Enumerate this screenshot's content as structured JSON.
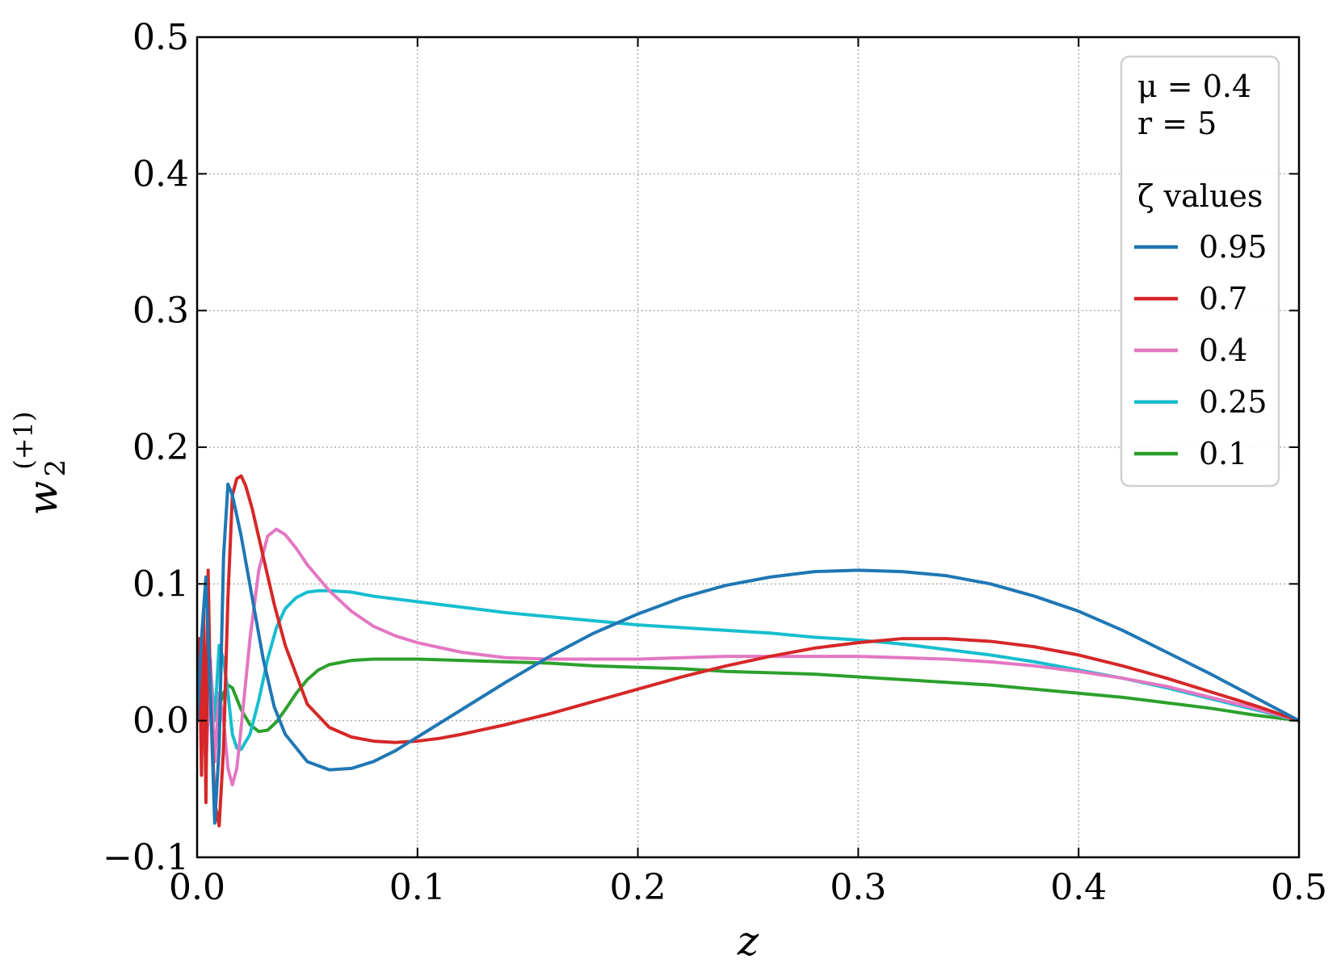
{
  "chart_data": {
    "type": "line",
    "xlabel": "z",
    "ylabel_base": "w",
    "ylabel_sub": "2",
    "ylabel_sup": "(+1)",
    "xlim": [
      0.0,
      0.5
    ],
    "ylim": [
      -0.1,
      0.5
    ],
    "xticks": [
      0.0,
      0.1,
      0.2,
      0.3,
      0.4,
      0.5
    ],
    "xtick_labels": [
      "0.0",
      "0.1",
      "0.2",
      "0.3",
      "0.4",
      "0.5"
    ],
    "yticks": [
      -0.1,
      0.0,
      0.1,
      0.2,
      0.3,
      0.4,
      0.5
    ],
    "ytick_labels": [
      "−0.1",
      "0.0",
      "0.1",
      "0.2",
      "0.3",
      "0.4",
      "0.5"
    ],
    "grid": true,
    "legend_placement": "top-right",
    "legend": {
      "params": [
        "μ = 0.4",
        "r = 5"
      ],
      "title": "ζ values"
    },
    "series": [
      {
        "name": "0.95",
        "color": "#1f77b4",
        "x": [
          0.0,
          0.002,
          0.004,
          0.006,
          0.008,
          0.01,
          0.012,
          0.014,
          0.016,
          0.02,
          0.025,
          0.03,
          0.035,
          0.04,
          0.05,
          0.06,
          0.07,
          0.08,
          0.09,
          0.1,
          0.12,
          0.14,
          0.16,
          0.18,
          0.2,
          0.22,
          0.24,
          0.26,
          0.28,
          0.3,
          0.32,
          0.34,
          0.36,
          0.38,
          0.4,
          0.42,
          0.44,
          0.46,
          0.48,
          0.5
        ],
        "y": [
          0.0,
          0.06,
          0.105,
          0.02,
          -0.075,
          -0.02,
          0.12,
          0.173,
          0.165,
          0.135,
          0.09,
          0.045,
          0.01,
          -0.01,
          -0.03,
          -0.036,
          -0.035,
          -0.03,
          -0.022,
          -0.012,
          0.008,
          0.028,
          0.047,
          0.064,
          0.078,
          0.09,
          0.099,
          0.105,
          0.109,
          0.11,
          0.109,
          0.106,
          0.1,
          0.091,
          0.08,
          0.066,
          0.05,
          0.034,
          0.017,
          0.0
        ]
      },
      {
        "name": "0.7",
        "color": "#d62728",
        "x": [
          0.0,
          0.001,
          0.002,
          0.003,
          0.004,
          0.005,
          0.006,
          0.008,
          0.01,
          0.012,
          0.014,
          0.016,
          0.018,
          0.02,
          0.022,
          0.025,
          0.03,
          0.035,
          0.04,
          0.05,
          0.06,
          0.07,
          0.08,
          0.09,
          0.1,
          0.11,
          0.12,
          0.14,
          0.16,
          0.18,
          0.2,
          0.22,
          0.24,
          0.26,
          0.28,
          0.3,
          0.32,
          0.34,
          0.36,
          0.38,
          0.4,
          0.42,
          0.44,
          0.46,
          0.48,
          0.5
        ],
        "y": [
          0.0,
          0.06,
          -0.04,
          0.08,
          -0.06,
          0.11,
          0.02,
          -0.06,
          -0.077,
          -0.02,
          0.09,
          0.165,
          0.177,
          0.179,
          0.172,
          0.155,
          0.12,
          0.085,
          0.055,
          0.012,
          -0.005,
          -0.012,
          -0.015,
          -0.016,
          -0.015,
          -0.013,
          -0.01,
          -0.003,
          0.005,
          0.014,
          0.023,
          0.032,
          0.04,
          0.047,
          0.053,
          0.057,
          0.06,
          0.06,
          0.058,
          0.054,
          0.048,
          0.04,
          0.031,
          0.021,
          0.011,
          0.0
        ]
      },
      {
        "name": "0.4",
        "color": "#e377c2",
        "x": [
          0.0,
          0.002,
          0.004,
          0.006,
          0.008,
          0.01,
          0.012,
          0.014,
          0.016,
          0.018,
          0.02,
          0.024,
          0.028,
          0.032,
          0.036,
          0.04,
          0.045,
          0.05,
          0.06,
          0.07,
          0.08,
          0.09,
          0.1,
          0.12,
          0.14,
          0.16,
          0.18,
          0.2,
          0.22,
          0.24,
          0.26,
          0.28,
          0.3,
          0.32,
          0.34,
          0.36,
          0.38,
          0.4,
          0.42,
          0.44,
          0.46,
          0.48,
          0.5
        ],
        "y": [
          0.0,
          0.05,
          -0.035,
          0.045,
          -0.03,
          0.02,
          0.0,
          -0.035,
          -0.047,
          -0.035,
          -0.005,
          0.06,
          0.11,
          0.135,
          0.14,
          0.136,
          0.126,
          0.114,
          0.095,
          0.08,
          0.069,
          0.062,
          0.057,
          0.05,
          0.046,
          0.045,
          0.045,
          0.045,
          0.046,
          0.047,
          0.047,
          0.047,
          0.047,
          0.046,
          0.045,
          0.043,
          0.04,
          0.036,
          0.031,
          0.025,
          0.017,
          0.009,
          0.0
        ]
      },
      {
        "name": "0.25",
        "color": "#17becf",
        "x": [
          0.0,
          0.002,
          0.004,
          0.006,
          0.008,
          0.01,
          0.012,
          0.014,
          0.016,
          0.018,
          0.02,
          0.024,
          0.028,
          0.032,
          0.036,
          0.04,
          0.045,
          0.05,
          0.055,
          0.06,
          0.07,
          0.08,
          0.09,
          0.1,
          0.12,
          0.14,
          0.16,
          0.18,
          0.2,
          0.22,
          0.24,
          0.26,
          0.28,
          0.3,
          0.32,
          0.34,
          0.36,
          0.38,
          0.4,
          0.42,
          0.44,
          0.46,
          0.48,
          0.5
        ],
        "y": [
          0.0,
          0.03,
          -0.02,
          0.04,
          0.0,
          0.055,
          0.045,
          0.02,
          -0.01,
          -0.02,
          -0.021,
          -0.01,
          0.015,
          0.045,
          0.068,
          0.082,
          0.09,
          0.094,
          0.095,
          0.095,
          0.094,
          0.091,
          0.089,
          0.087,
          0.083,
          0.079,
          0.076,
          0.073,
          0.07,
          0.068,
          0.066,
          0.064,
          0.061,
          0.059,
          0.056,
          0.052,
          0.048,
          0.043,
          0.037,
          0.031,
          0.024,
          0.016,
          0.008,
          0.0
        ]
      },
      {
        "name": "0.1",
        "color": "#2ca02c",
        "x": [
          0.0,
          0.002,
          0.004,
          0.006,
          0.008,
          0.01,
          0.012,
          0.014,
          0.016,
          0.018,
          0.02,
          0.024,
          0.028,
          0.032,
          0.036,
          0.04,
          0.045,
          0.05,
          0.055,
          0.06,
          0.07,
          0.08,
          0.09,
          0.1,
          0.12,
          0.14,
          0.16,
          0.18,
          0.2,
          0.22,
          0.24,
          0.26,
          0.28,
          0.3,
          0.32,
          0.34,
          0.36,
          0.38,
          0.4,
          0.42,
          0.44,
          0.46,
          0.48,
          0.5
        ],
        "y": [
          0.0,
          0.01,
          -0.005,
          0.015,
          0.0,
          0.01,
          0.02,
          0.026,
          0.024,
          0.016,
          0.008,
          -0.003,
          -0.008,
          -0.007,
          -0.001,
          0.008,
          0.02,
          0.03,
          0.037,
          0.041,
          0.044,
          0.045,
          0.045,
          0.045,
          0.044,
          0.043,
          0.042,
          0.04,
          0.039,
          0.038,
          0.036,
          0.035,
          0.034,
          0.032,
          0.03,
          0.028,
          0.026,
          0.023,
          0.02,
          0.017,
          0.013,
          0.009,
          0.004,
          0.0
        ]
      }
    ]
  }
}
